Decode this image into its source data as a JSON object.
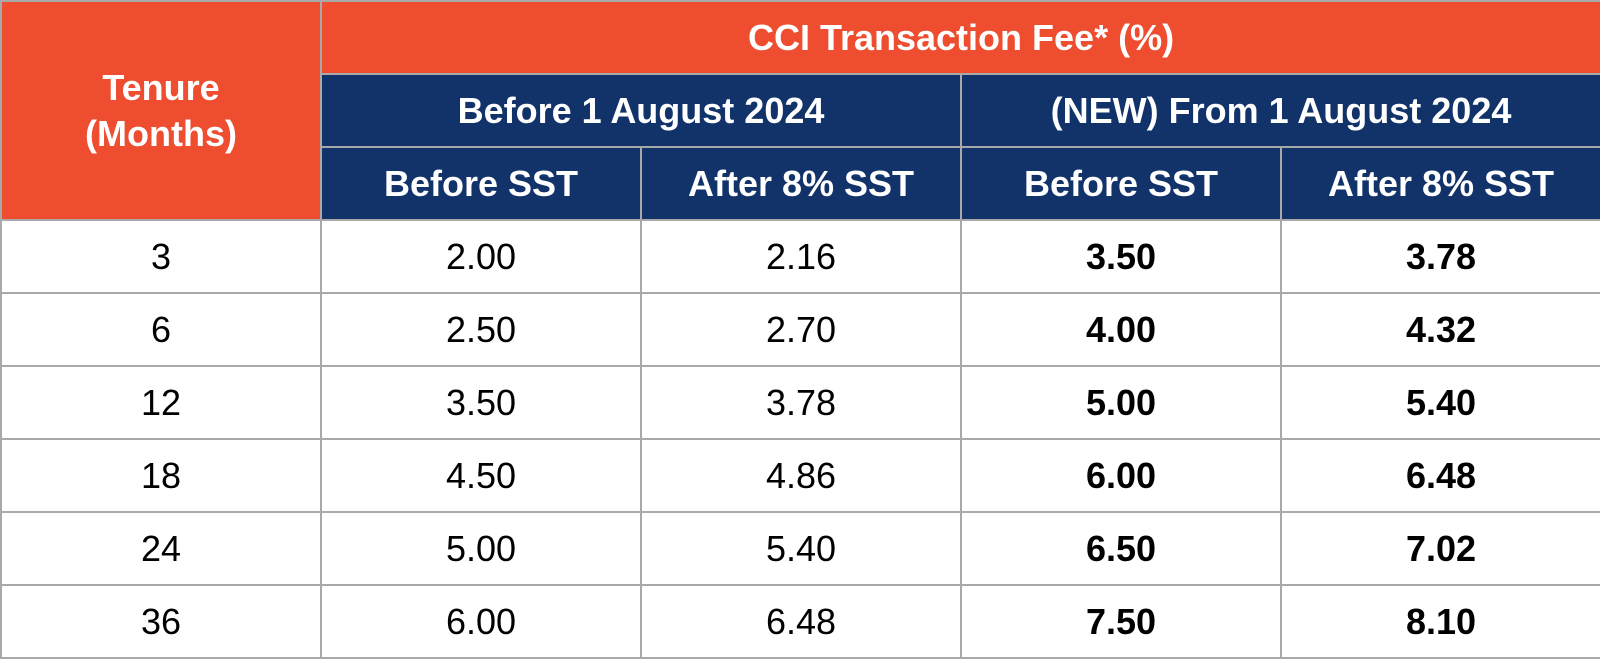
{
  "header": {
    "tenure_line1": "Tenure",
    "tenure_line2": "(Months)",
    "group_title": "CCI Transaction Fee* (%)",
    "period_before": "Before 1 August 2024",
    "period_new": "(NEW) From 1 August 2024",
    "col_before_sst": "Before SST",
    "col_after_sst": "After 8% SST"
  },
  "colors": {
    "orange_header": "#ee4e2f",
    "navy_header": "#12326a",
    "grid_border": "#a9a9a9"
  },
  "rows": [
    {
      "tenure": "3",
      "old_before": "2.00",
      "old_after": "2.16",
      "new_before": "3.50",
      "new_after": "3.78"
    },
    {
      "tenure": "6",
      "old_before": "2.50",
      "old_after": "2.70",
      "new_before": "4.00",
      "new_after": "4.32"
    },
    {
      "tenure": "12",
      "old_before": "3.50",
      "old_after": "3.78",
      "new_before": "5.00",
      "new_after": "5.40"
    },
    {
      "tenure": "18",
      "old_before": "4.50",
      "old_after": "4.86",
      "new_before": "6.00",
      "new_after": "6.48"
    },
    {
      "tenure": "24",
      "old_before": "5.00",
      "old_after": "5.40",
      "new_before": "6.50",
      "new_after": "7.02"
    },
    {
      "tenure": "36",
      "old_before": "6.00",
      "old_after": "6.48",
      "new_before": "7.50",
      "new_after": "8.10"
    }
  ]
}
